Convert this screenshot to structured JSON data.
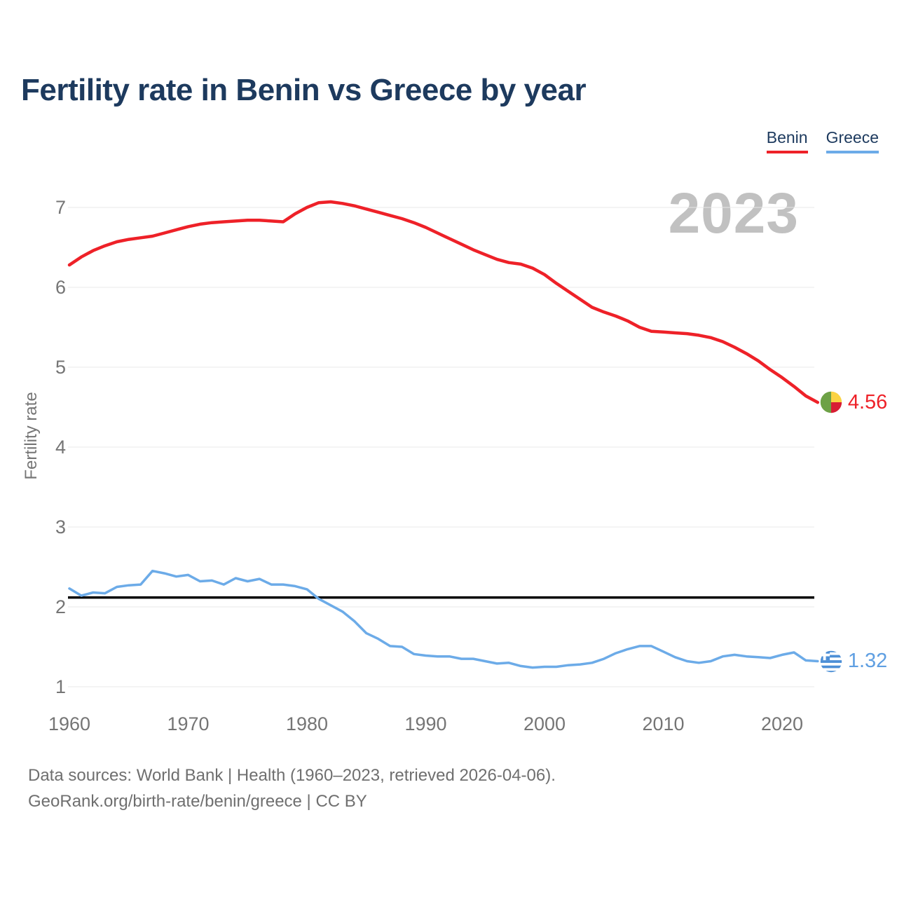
{
  "header": {
    "title": "Fertility rate in Benin vs Greece by year"
  },
  "legend": {
    "items": [
      {
        "label": "Benin",
        "color": "#ee2128"
      },
      {
        "label": "Greece",
        "color": "#6cabe8"
      }
    ]
  },
  "chart": {
    "watermark": "2023",
    "y_axis_label": "Fertility rate"
  },
  "chart_data": {
    "type": "line",
    "title": "Fertility rate in Benin vs Greece by year",
    "xlabel": "",
    "ylabel": "Fertility rate",
    "x_start": 1960,
    "x_end": 2023,
    "xlim": [
      1960,
      2023
    ],
    "ylim": [
      1,
      7
    ],
    "x_ticks": [
      1960,
      1970,
      1980,
      1990,
      2000,
      2010,
      2020
    ],
    "y_ticks": [
      1,
      2,
      3,
      4,
      5,
      6,
      7
    ],
    "grid": "horizontal",
    "legend_position": "top-right",
    "reference_line": {
      "value": 2.1,
      "color": "#000000"
    },
    "series": [
      {
        "name": "Benin",
        "color": "#ee2128",
        "label_color": "#ee2128",
        "flag_icon": "benin-flag-icon",
        "end_label": "4.56",
        "values": [
          6.28,
          6.38,
          6.46,
          6.52,
          6.57,
          6.6,
          6.62,
          6.64,
          6.68,
          6.72,
          6.76,
          6.79,
          6.81,
          6.82,
          6.83,
          6.84,
          6.84,
          6.83,
          6.82,
          6.92,
          7.0,
          7.06,
          7.07,
          7.05,
          7.02,
          6.98,
          6.94,
          6.9,
          6.86,
          6.81,
          6.75,
          6.68,
          6.61,
          6.54,
          6.47,
          6.41,
          6.35,
          6.31,
          6.29,
          6.24,
          6.16,
          6.05,
          5.95,
          5.85,
          5.75,
          5.69,
          5.64,
          5.58,
          5.5,
          5.45,
          5.44,
          5.43,
          5.42,
          5.4,
          5.37,
          5.32,
          5.25,
          5.17,
          5.08,
          4.97,
          4.87,
          4.76,
          4.64,
          4.56
        ]
      },
      {
        "name": "Greece",
        "color": "#6cabe8",
        "label_color": "#5f9fe2",
        "flag_icon": "greece-flag-icon",
        "end_label": "1.32",
        "values": [
          2.23,
          2.14,
          2.18,
          2.17,
          2.25,
          2.27,
          2.28,
          2.45,
          2.42,
          2.38,
          2.4,
          2.32,
          2.33,
          2.28,
          2.36,
          2.32,
          2.35,
          2.28,
          2.28,
          2.26,
          2.22,
          2.1,
          2.02,
          1.94,
          1.82,
          1.67,
          1.6,
          1.51,
          1.5,
          1.41,
          1.39,
          1.38,
          1.38,
          1.35,
          1.35,
          1.32,
          1.29,
          1.3,
          1.26,
          1.24,
          1.25,
          1.25,
          1.27,
          1.28,
          1.3,
          1.35,
          1.42,
          1.47,
          1.51,
          1.51,
          1.44,
          1.37,
          1.32,
          1.3,
          1.32,
          1.38,
          1.4,
          1.38,
          1.37,
          1.36,
          1.4,
          1.43,
          1.33,
          1.32
        ]
      }
    ]
  },
  "footer": {
    "line1": "Data sources: World Bank | Health (1960–2023, retrieved 2026-04-06).",
    "line2": "GeoRank.org/birth-rate/benin/greece | CC BY"
  }
}
